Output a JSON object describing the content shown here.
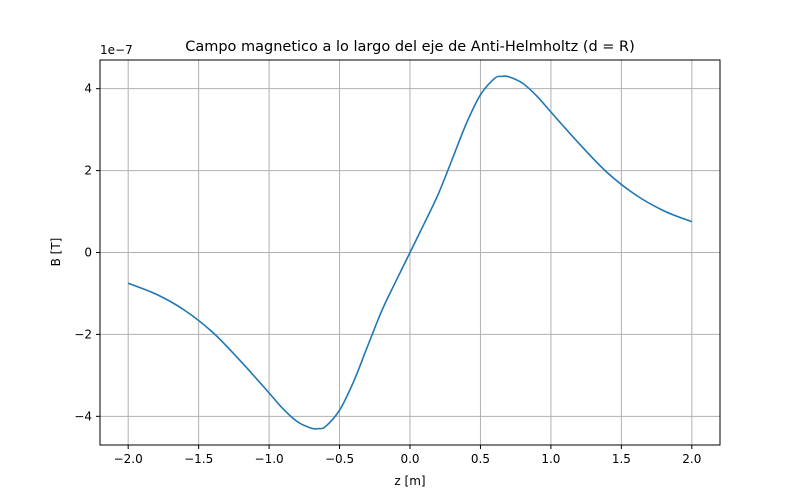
{
  "chart_data": {
    "type": "line",
    "title": "Campo magnetico a lo largo del eje de Anti-Helmholtz (d = R)",
    "xlabel": "z [m]",
    "ylabel": "B [T]",
    "y_offset_label": "1e−7",
    "xlim": [
      -2.2,
      2.2
    ],
    "ylim": [
      -4.7,
      4.7
    ],
    "xticks": [
      -2.0,
      -1.5,
      -1.0,
      -0.5,
      0.0,
      0.5,
      1.0,
      1.5,
      2.0
    ],
    "xtick_labels": [
      "−2.0",
      "−1.5",
      "−1.0",
      "−0.5",
      "0.0",
      "0.5",
      "1.0",
      "1.5",
      "2.0"
    ],
    "yticks": [
      -4,
      -2,
      0,
      2,
      4
    ],
    "ytick_labels": [
      "−4",
      "−2",
      "0",
      "2",
      "4"
    ],
    "grid": true,
    "series": [
      {
        "color": "#1f77b4",
        "x": [
          -2.0,
          -1.8,
          -1.6,
          -1.4,
          -1.2,
          -1.0,
          -0.9,
          -0.8,
          -0.7,
          -0.65,
          -0.6,
          -0.5,
          -0.4,
          -0.3,
          -0.2,
          -0.1,
          0.0,
          0.1,
          0.2,
          0.3,
          0.4,
          0.5,
          0.6,
          0.65,
          0.7,
          0.8,
          0.9,
          1.0,
          1.2,
          1.4,
          1.6,
          1.8,
          2.0
        ],
        "y": [
          -0.75,
          -1.02,
          -1.41,
          -1.95,
          -2.66,
          -3.43,
          -3.82,
          -4.13,
          -4.29,
          -4.3,
          -4.25,
          -3.85,
          -3.15,
          -2.28,
          -1.42,
          -0.7,
          0.0,
          0.7,
          1.42,
          2.28,
          3.15,
          3.85,
          4.25,
          4.3,
          4.29,
          4.13,
          3.82,
          3.43,
          2.66,
          1.95,
          1.41,
          1.02,
          0.75
        ]
      }
    ]
  }
}
